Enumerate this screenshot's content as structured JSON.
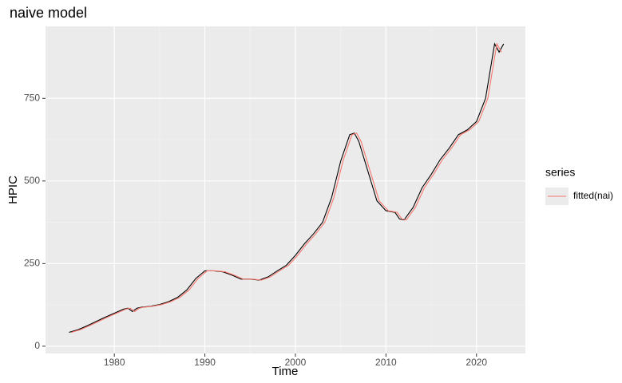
{
  "chart_data": {
    "type": "line",
    "title": "naive model",
    "x_label": "Time",
    "y_label": "HPIC",
    "legend_title": "series",
    "series": [
      {
        "color": "#000000",
        "x": [
          1975,
          1976,
          1977,
          1978,
          1979,
          1980,
          1981,
          1981.5,
          1982,
          1982.5,
          1983,
          1984,
          1985,
          1986,
          1987,
          1988,
          1989,
          1990,
          1991,
          1992,
          1993,
          1994,
          1995,
          1996,
          1997,
          1998,
          1999,
          2000,
          2001,
          2002,
          2003,
          2004,
          2005,
          2006,
          2006.5,
          2007,
          2008,
          2009,
          2010,
          2011,
          2011.5,
          2012,
          2013,
          2014,
          2015,
          2016,
          2017,
          2018,
          2019,
          2020,
          2021,
          2022,
          2022.5,
          2023
        ],
        "values": [
          42,
          50,
          62,
          75,
          88,
          100,
          112,
          115,
          105,
          115,
          118,
          121,
          126,
          135,
          148,
          170,
          205,
          228,
          228,
          225,
          215,
          203,
          203,
          200,
          210,
          228,
          245,
          275,
          310,
          340,
          375,
          450,
          560,
          640,
          645,
          620,
          530,
          440,
          410,
          405,
          385,
          382,
          420,
          480,
          520,
          565,
          600,
          640,
          655,
          680,
          750,
          915,
          890,
          915
        ]
      },
      {
        "name": "fitted(nai)",
        "color": "#F8766D",
        "x": [
          1975.25,
          1976.25,
          1977.25,
          1978.25,
          1979.25,
          1980.25,
          1981.25,
          1981.75,
          1982.25,
          1982.75,
          1983.25,
          1984.25,
          1985.25,
          1986.25,
          1987.25,
          1988.25,
          1989.25,
          1990.25,
          1991.25,
          1992.25,
          1993.25,
          1994.25,
          1995.25,
          1996.25,
          1997.25,
          1998.25,
          1999.25,
          2000.25,
          2001.25,
          2002.25,
          2003.25,
          2004.25,
          2005.25,
          2006.25,
          2006.75,
          2007.25,
          2008.25,
          2009.25,
          2010.25,
          2011.25,
          2011.75,
          2012.25,
          2013.25,
          2014.25,
          2015.25,
          2016.25,
          2017.25,
          2018.25,
          2019.25,
          2020.25,
          2021.25,
          2022.25,
          2022.75
        ],
        "values": [
          42,
          50,
          62,
          75,
          88,
          100,
          112,
          115,
          105,
          115,
          118,
          121,
          126,
          135,
          148,
          170,
          205,
          228,
          228,
          225,
          215,
          203,
          203,
          200,
          210,
          228,
          245,
          275,
          310,
          340,
          375,
          450,
          560,
          640,
          645,
          620,
          530,
          440,
          410,
          405,
          385,
          382,
          420,
          480,
          520,
          565,
          600,
          640,
          655,
          680,
          750,
          915,
          890
        ]
      }
    ],
    "xlim": [
      1972.4,
      2025.4
    ],
    "xticks": [
      1980,
      1990,
      2000,
      2010,
      2020
    ],
    "ylim": [
      -22,
      968
    ],
    "yticks": [
      0,
      250,
      500,
      750
    ],
    "grid": true,
    "legend": "right"
  }
}
